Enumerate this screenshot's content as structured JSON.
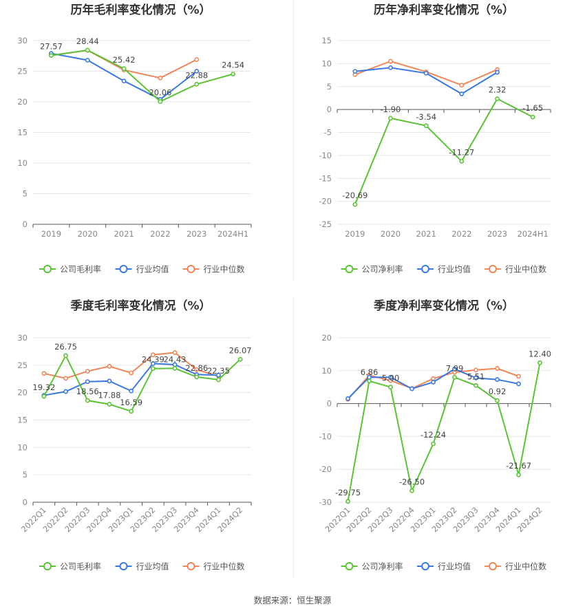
{
  "colors": {
    "company": "#5bc236",
    "industry_avg": "#3a78e0",
    "industry_median": "#f08558"
  },
  "legend_icons": [
    "line-circle-icon"
  ],
  "source": "数据来源：恒生聚源",
  "chart_data": [
    {
      "type": "line",
      "title": "历年毛利率变化情况（%）",
      "categories": [
        "2019",
        "2020",
        "2021",
        "2022",
        "2023",
        "2024H1"
      ],
      "ylim": [
        0,
        30
      ],
      "yticks": [
        0,
        5,
        10,
        15,
        20,
        25,
        30
      ],
      "xlabel_rotate": false,
      "grid": true,
      "legend_position": "bottom",
      "series": [
        {
          "name": "公司毛利率",
          "key": "company",
          "values": [
            27.57,
            28.44,
            25.42,
            20.06,
            22.88,
            24.54
          ],
          "labels": true
        },
        {
          "name": "行业均值",
          "key": "industry_avg",
          "values": [
            27.9,
            26.8,
            23.4,
            20.4,
            25.0,
            null
          ]
        },
        {
          "name": "行业中位数",
          "key": "industry_median",
          "values": [
            27.6,
            28.4,
            25.2,
            23.9,
            26.9,
            null
          ]
        }
      ]
    },
    {
      "type": "line",
      "title": "历年净利率变化情况（%）",
      "categories": [
        "2019",
        "2020",
        "2021",
        "2022",
        "2023",
        "2024H1"
      ],
      "ylim": [
        -25,
        15
      ],
      "yticks": [
        -25,
        -20,
        -15,
        -10,
        -5,
        0,
        5,
        10,
        15
      ],
      "xlabel_rotate": false,
      "grid": true,
      "legend_position": "bottom",
      "series": [
        {
          "name": "公司净利率",
          "key": "company",
          "values": [
            -20.69,
            -1.9,
            -3.54,
            -11.27,
            2.32,
            -1.65
          ],
          "labels": true
        },
        {
          "name": "行业均值",
          "key": "industry_avg",
          "values": [
            8.3,
            9.1,
            7.9,
            3.4,
            8.1,
            null
          ]
        },
        {
          "name": "行业中位数",
          "key": "industry_median",
          "values": [
            7.6,
            10.5,
            8.2,
            5.3,
            8.7,
            null
          ]
        }
      ]
    },
    {
      "type": "line",
      "title": "季度毛利率变化情况（%）",
      "categories": [
        "2022Q1",
        "2022Q2",
        "2022Q3",
        "2022Q4",
        "2023Q1",
        "2023Q2",
        "2023Q3",
        "2023Q4",
        "2024Q1",
        "2024Q2"
      ],
      "ylim": [
        0,
        30
      ],
      "yticks": [
        0,
        5,
        10,
        15,
        20,
        25,
        30
      ],
      "xlabel_rotate": true,
      "grid": true,
      "legend_position": "bottom",
      "series": [
        {
          "name": "公司毛利率",
          "key": "company",
          "values": [
            19.32,
            26.75,
            18.56,
            17.88,
            16.59,
            24.39,
            24.43,
            22.86,
            22.35,
            26.07
          ],
          "labels": true
        },
        {
          "name": "行业均值",
          "key": "industry_avg",
          "values": [
            19.5,
            20.2,
            22.0,
            22.1,
            20.3,
            25.3,
            25.1,
            23.3,
            23.2,
            null
          ]
        },
        {
          "name": "行业中位数",
          "key": "industry_median",
          "values": [
            23.5,
            22.6,
            23.9,
            24.8,
            23.6,
            26.9,
            27.3,
            24.2,
            23.0,
            null
          ]
        }
      ]
    },
    {
      "type": "line",
      "title": "季度净利率变化情况（%）",
      "categories": [
        "2022Q1",
        "2022Q2",
        "2022Q3",
        "2022Q4",
        "2023Q1",
        "2023Q2",
        "2023Q3",
        "2023Q4",
        "2024Q1",
        "2024Q2"
      ],
      "ylim": [
        -30,
        20
      ],
      "yticks": [
        -30,
        -20,
        -10,
        0,
        10,
        20
      ],
      "xlabel_rotate": true,
      "grid": true,
      "legend_position": "bottom",
      "series": [
        {
          "name": "公司净利率",
          "key": "company",
          "values": [
            -29.75,
            6.86,
            5.0,
            -26.5,
            -12.24,
            7.99,
            5.51,
            0.92,
            -21.67,
            12.4
          ],
          "labels": true
        },
        {
          "name": "行业均值",
          "key": "industry_avg",
          "values": [
            1.5,
            8.0,
            8.0,
            4.5,
            6.5,
            10.5,
            7.8,
            7.3,
            6.0,
            null
          ]
        },
        {
          "name": "行业中位数",
          "key": "industry_median",
          "values": [
            1.3,
            8.6,
            7.0,
            4.6,
            7.6,
            9.5,
            10.2,
            10.7,
            8.3,
            null
          ]
        }
      ]
    }
  ]
}
